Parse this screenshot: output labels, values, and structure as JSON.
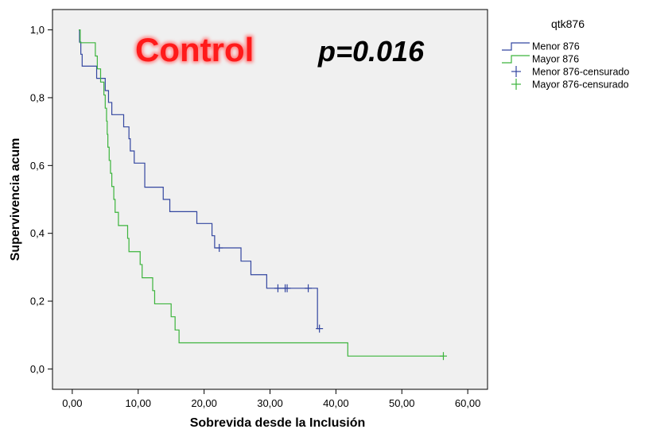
{
  "chart_data": {
    "type": "line",
    "xlabel": "Sobrevida desde la Inclusión",
    "ylabel": "Supervivencia acum",
    "xlim": [
      -3,
      63
    ],
    "ylim": [
      -0.06,
      1.06
    ],
    "x_ticks": [
      0,
      10,
      20,
      30,
      40,
      50,
      60
    ],
    "x_tick_labels": [
      "0,00",
      "10,00",
      "20,00",
      "30,00",
      "40,00",
      "50,00",
      "60,00"
    ],
    "y_ticks": [
      0,
      0.2,
      0.4,
      0.6,
      0.8,
      1.0
    ],
    "y_tick_labels": [
      "0,0",
      "0,2",
      "0,4",
      "0,6",
      "0,8",
      "1,0"
    ],
    "legend_title": "qtk876",
    "legend_position": "right-outside",
    "grid": false,
    "annotations": {
      "label": "Control",
      "pvalue": "p=0.016"
    },
    "colors": {
      "menor": "#3346a0",
      "mayor": "#3cb43c",
      "plot_bg": "#f0f0f0",
      "control": "#ff1a1a"
    },
    "series": [
      {
        "name": "Menor 876",
        "step": true,
        "points": [
          [
            1.0,
            1.0
          ],
          [
            1.1,
            0.964
          ],
          [
            1.3,
            0.928
          ],
          [
            1.5,
            0.893
          ],
          [
            3.7,
            0.857
          ],
          [
            5.0,
            0.821
          ],
          [
            5.5,
            0.786
          ],
          [
            6.0,
            0.75
          ],
          [
            7.8,
            0.714
          ],
          [
            8.6,
            0.679
          ],
          [
            8.8,
            0.643
          ],
          [
            9.4,
            0.607
          ],
          [
            11.0,
            0.536
          ],
          [
            13.8,
            0.5
          ],
          [
            14.8,
            0.464
          ],
          [
            18.9,
            0.429
          ],
          [
            21.2,
            0.393
          ],
          [
            21.6,
            0.357
          ],
          [
            25.6,
            0.318
          ],
          [
            27.1,
            0.278
          ],
          [
            29.5,
            0.238
          ],
          [
            37.2,
            0.119
          ],
          [
            37.6,
            0.119
          ]
        ],
        "censored": [
          [
            22.3,
            0.357
          ],
          [
            31.2,
            0.238
          ],
          [
            32.3,
            0.238
          ],
          [
            32.6,
            0.238
          ],
          [
            35.8,
            0.238
          ],
          [
            37.5,
            0.119
          ]
        ]
      },
      {
        "name": "Mayor 876",
        "step": true,
        "points": [
          [
            1.0,
            1.0
          ],
          [
            1.2,
            0.962
          ],
          [
            3.5,
            0.923
          ],
          [
            3.8,
            0.885
          ],
          [
            4.3,
            0.846
          ],
          [
            4.8,
            0.808
          ],
          [
            5.0,
            0.769
          ],
          [
            5.2,
            0.731
          ],
          [
            5.3,
            0.692
          ],
          [
            5.4,
            0.654
          ],
          [
            5.6,
            0.615
          ],
          [
            5.8,
            0.577
          ],
          [
            6.0,
            0.538
          ],
          [
            6.3,
            0.5
          ],
          [
            6.5,
            0.462
          ],
          [
            7.0,
            0.423
          ],
          [
            8.4,
            0.385
          ],
          [
            8.6,
            0.346
          ],
          [
            10.3,
            0.308
          ],
          [
            10.6,
            0.269
          ],
          [
            12.2,
            0.231
          ],
          [
            12.5,
            0.192
          ],
          [
            15.0,
            0.154
          ],
          [
            15.6,
            0.115
          ],
          [
            16.2,
            0.077
          ],
          [
            41.8,
            0.038
          ],
          [
            56.3,
            0.038
          ]
        ],
        "censored": [
          [
            56.3,
            0.038
          ]
        ]
      }
    ],
    "legend_entries": [
      {
        "label": "Menor 876",
        "kind": "line",
        "color_key": "menor"
      },
      {
        "label": "Mayor 876",
        "kind": "line",
        "color_key": "mayor"
      },
      {
        "label": "Menor 876-censurado",
        "kind": "cross",
        "color_key": "menor"
      },
      {
        "label": "Mayor 876-censurado",
        "kind": "cross",
        "color_key": "mayor"
      }
    ]
  }
}
